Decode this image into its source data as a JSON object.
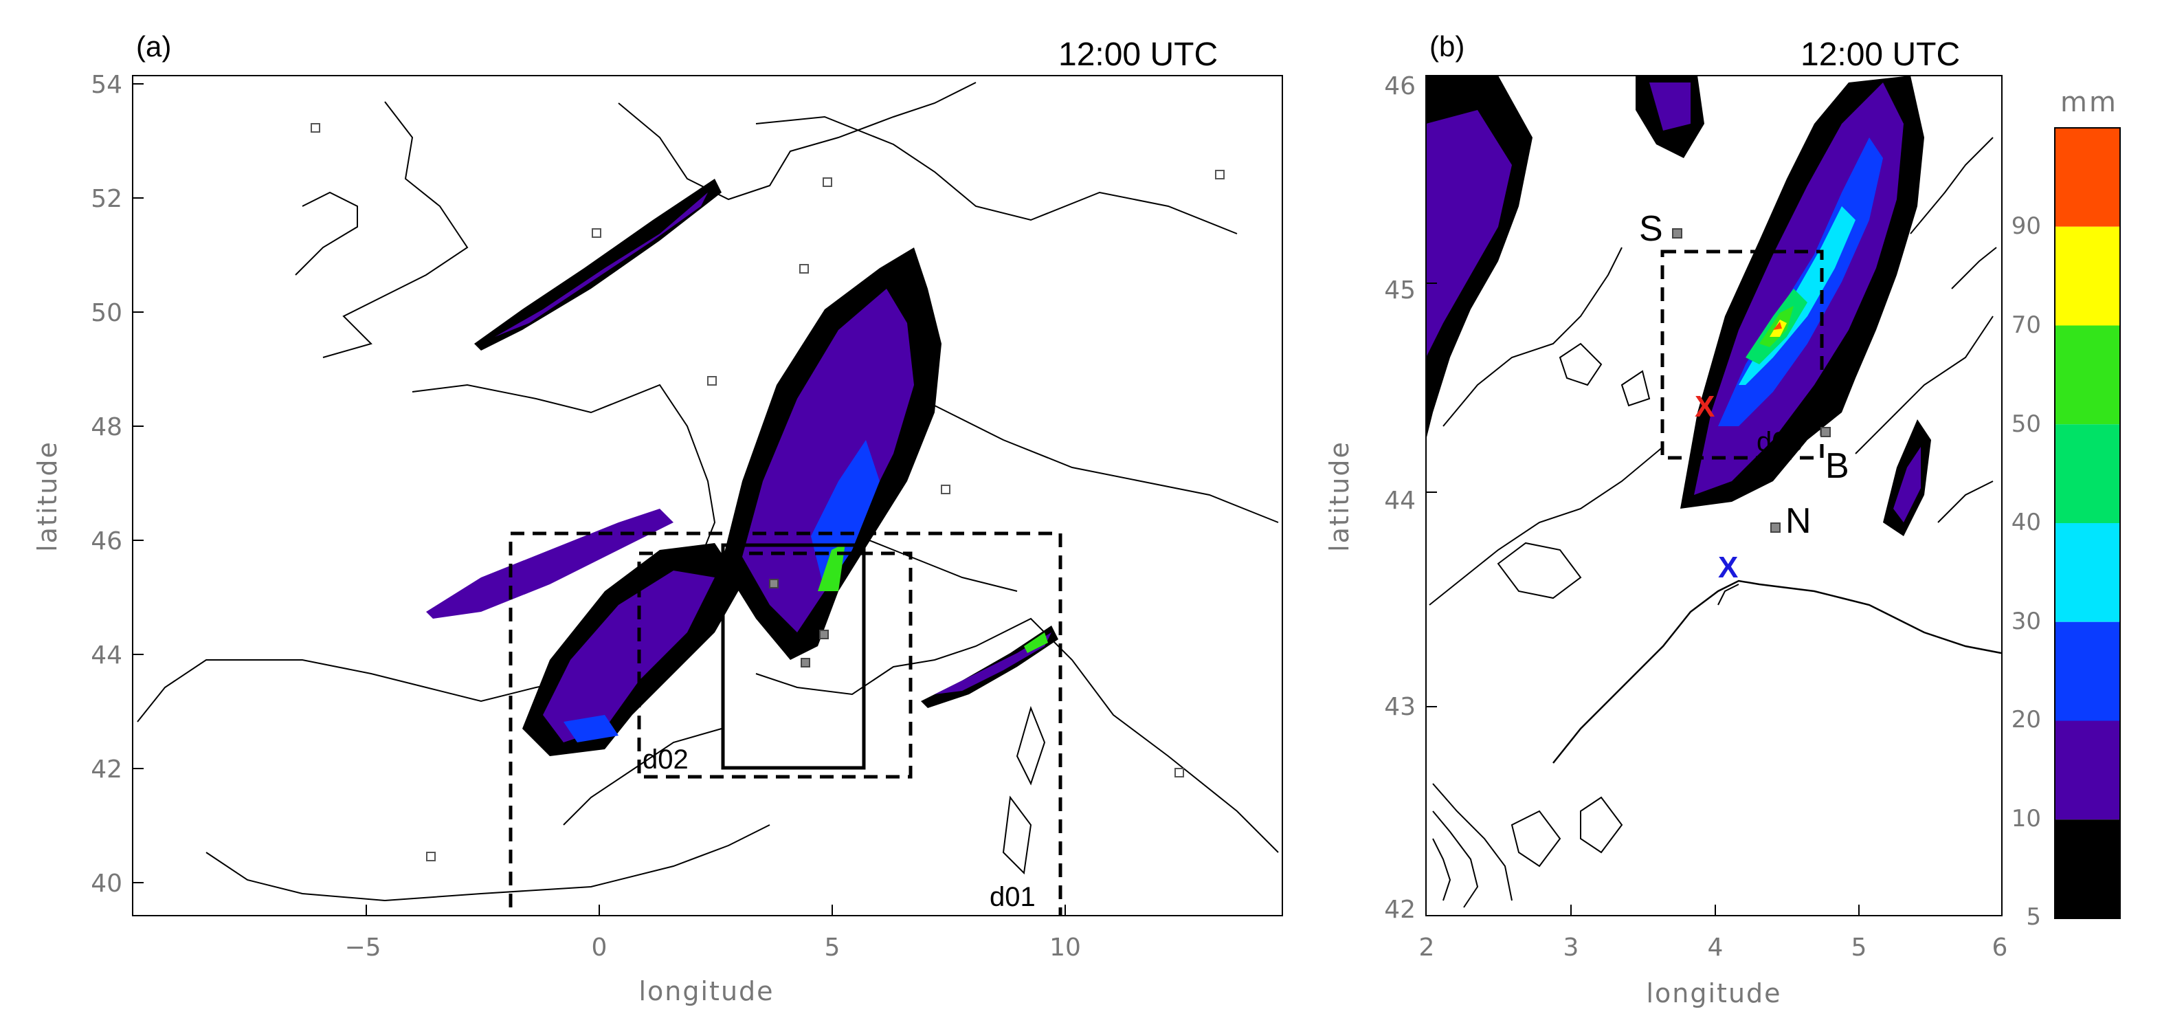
{
  "panel_a": {
    "tag": "(a)",
    "time": "12:00 UTC",
    "xlabel": "longitude",
    "ylabel": "latitude",
    "xticks": [
      "−5",
      "0",
      "5",
      "10"
    ],
    "yticks": [
      "54",
      "52",
      "50",
      "48",
      "46",
      "44",
      "42",
      "40"
    ],
    "domains": [
      "d01",
      "d02"
    ]
  },
  "panel_b": {
    "tag": "(b)",
    "time": "12:00 UTC",
    "xlabel": "longitude",
    "ylabel": "latitude",
    "xticks": [
      "2",
      "3",
      "4",
      "5",
      "6"
    ],
    "yticks": [
      "46",
      "45",
      "44",
      "43",
      "42"
    ],
    "domain": "d03",
    "cities": [
      "S",
      "B",
      "N"
    ],
    "markers": [
      {
        "name": "red-x",
        "label": "X",
        "color": "#e8231c"
      },
      {
        "name": "blue-x",
        "label": "X",
        "color": "#1a1adc"
      }
    ]
  },
  "colorbar": {
    "unit": "mm",
    "ticks": [
      "90",
      "70",
      "50",
      "40",
      "30",
      "20",
      "10",
      "5"
    ],
    "colors": [
      "#ff4d00",
      "#ffff00",
      "#33e51a",
      "#00e266",
      "#00e5ff",
      "#0a3cff",
      "#4b00a8",
      "#000000"
    ]
  }
}
